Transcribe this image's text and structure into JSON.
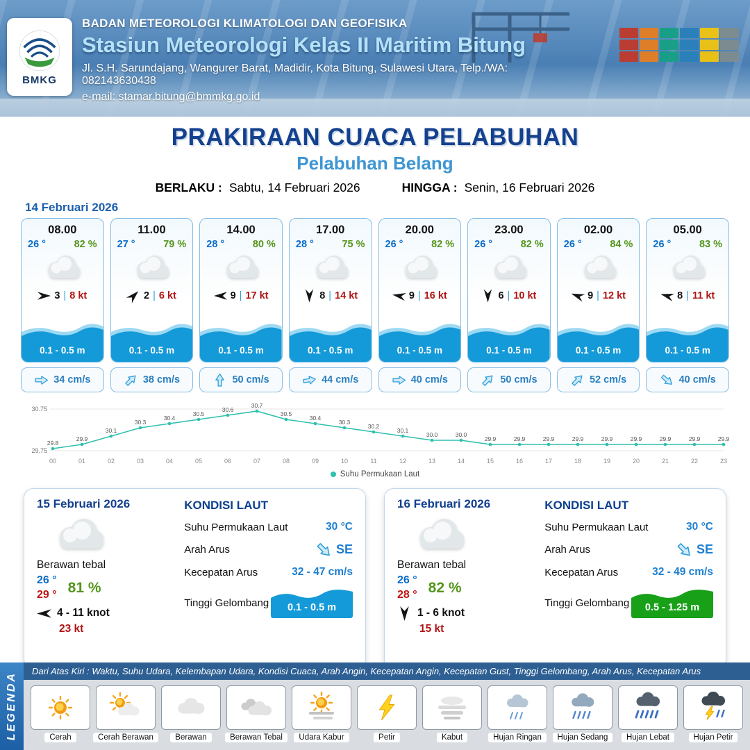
{
  "header": {
    "org": "BADAN METEOROLOGI KLIMATOLOGI DAN GEOFISIKA",
    "station": "Stasiun Meteorologi Kelas II Maritim Bitung",
    "address": "Jl. S.H. Sarundajang, Wangurer Barat, Madidir, Kota Bitung, Sulawesi Utara, Telp./WA: 082143630438",
    "email": "e-mail: stamar.bitung@bmmkg.go.id",
    "logo_text": "BMKG"
  },
  "title": {
    "main": "PRAKIRAAN CUACA PELABUHAN",
    "subtitle": "Pelabuhan Belang",
    "valid_label": "BERLAKU :",
    "valid_value": "Sabtu, 14 Februari 2026",
    "until_label": "HINGGA :",
    "until_value": "Senin, 16 Februari 2026"
  },
  "misc": {
    "divider": "|"
  },
  "forecast": {
    "date": "14 Februari 2026",
    "cards": [
      {
        "time": "08.00",
        "temp": "26 °",
        "rh": "82 %",
        "wind": "3",
        "gust": "8 kt",
        "wave": "0.1 - 0.5 m",
        "current": "34 cm/s",
        "wind_deg": 0,
        "cur_deg": 0
      },
      {
        "time": "11.00",
        "temp": "27 °",
        "rh": "79 %",
        "wind": "2",
        "gust": "6 kt",
        "wave": "0.1 - 0.5 m",
        "current": "38 cm/s",
        "wind_deg": -45,
        "cur_deg": -45
      },
      {
        "time": "14.00",
        "temp": "28 °",
        "rh": "80 %",
        "wind": "9",
        "gust": "17 kt",
        "wave": "0.1 - 0.5 m",
        "current": "50 cm/s",
        "wind_deg": 180,
        "cur_deg": -90
      },
      {
        "time": "17.00",
        "temp": "28 °",
        "rh": "75 %",
        "wind": "8",
        "gust": "14 kt",
        "wave": "0.1 - 0.5 m",
        "current": "44 cm/s",
        "wind_deg": 90,
        "cur_deg": -10
      },
      {
        "time": "20.00",
        "temp": "26 °",
        "rh": "82 %",
        "wind": "9",
        "gust": "16 kt",
        "wave": "0.1 - 0.5 m",
        "current": "40 cm/s",
        "wind_deg": 190,
        "cur_deg": 0
      },
      {
        "time": "23.00",
        "temp": "26 °",
        "rh": "82 %",
        "wind": "6",
        "gust": "10 kt",
        "wave": "0.1 - 0.5 m",
        "current": "50 cm/s",
        "wind_deg": 90,
        "cur_deg": -45
      },
      {
        "time": "02.00",
        "temp": "26 °",
        "rh": "84 %",
        "wind": "9",
        "gust": "12 kt",
        "wave": "0.1 - 0.5 m",
        "current": "52 cm/s",
        "wind_deg": 200,
        "cur_deg": -45
      },
      {
        "time": "05.00",
        "temp": "26 °",
        "rh": "83 %",
        "wind": "8",
        "gust": "11 kt",
        "wave": "0.1 - 0.5 m",
        "current": "40 cm/s",
        "wind_deg": 195,
        "cur_deg": 40
      }
    ],
    "wave_color": "#149ad8"
  },
  "chart_data": {
    "type": "line",
    "series_name": "Suhu Permukaan Laut",
    "x": [
      "00",
      "01",
      "02",
      "03",
      "04",
      "05",
      "06",
      "07",
      "08",
      "09",
      "10",
      "11",
      "12",
      "13",
      "14",
      "15",
      "16",
      "17",
      "18",
      "19",
      "20",
      "21",
      "22",
      "23"
    ],
    "values": [
      29.8,
      29.9,
      30.1,
      30.3,
      30.4,
      30.5,
      30.6,
      30.7,
      30.5,
      30.4,
      30.3,
      30.2,
      30.1,
      30.0,
      30.0,
      29.9,
      29.9,
      29.9,
      29.9,
      29.9,
      29.9,
      29.9,
      29.9,
      29.9
    ],
    "ylim": [
      29.75,
      30.75
    ],
    "yticks": [
      29.75,
      30.75
    ],
    "line_color": "#2fc0ae",
    "legend_position": "bottom",
    "grid": true
  },
  "days": [
    {
      "date": "15 Februari 2026",
      "condition": "Berawan tebal",
      "temp_min": "26 °",
      "temp_max": "29 °",
      "rh": "81 %",
      "wind": "4  - 11 knot",
      "gust": "23 kt",
      "wind_deg": 180,
      "sea": {
        "title": "KONDISI LAUT",
        "sst_label": "Suhu Permukaan Laut",
        "sst": "30 °C",
        "dir_label": "Arah Arus",
        "dir": "SE",
        "dir_deg": 45,
        "speed_label": "Kecepatan Arus",
        "speed": "32 - 47 cm/s",
        "wave_label": "Tinggi Gelombang",
        "wave": "0.1 - 0.5 m",
        "wave_color": "#149ad8"
      }
    },
    {
      "date": "16 Februari 2026",
      "condition": "Berawan tebal",
      "temp_min": "26 °",
      "temp_max": "28 °",
      "rh": "82 %",
      "wind": "1  - 6 knot",
      "gust": "15 kt",
      "wind_deg": 90,
      "sea": {
        "title": "KONDISI LAUT",
        "sst_label": "Suhu Permukaan Laut",
        "sst": "30 °C",
        "dir_label": "Arah Arus",
        "dir": "SE",
        "dir_deg": 45,
        "speed_label": "Kecepatan Arus",
        "speed": "32 - 49 cm/s",
        "wave_label": "Tinggi Gelombang",
        "wave": "0.5 - 1.25 m",
        "wave_color": "#18a019"
      }
    }
  ],
  "legend": {
    "title": "LEGENDA",
    "note": "Dari Atas Kiri : Waktu, Suhu Udara, Kelembapan Udara, Kondisi Cuaca, Arah Angin, Kecepatan Angin, Kecepatan Gust, Tinggi Gelombang, Arah Arus, Kecepatan Arus",
    "items": [
      {
        "label": "Cerah",
        "kind": "cerah"
      },
      {
        "label": "Cerah Berawan",
        "kind": "cerah-berawan"
      },
      {
        "label": "Berawan",
        "kind": "berawan"
      },
      {
        "label": "Berawan Tebal",
        "kind": "berawan-tebal"
      },
      {
        "label": "Udara Kabur",
        "kind": "udara-kabur"
      },
      {
        "label": "Petir",
        "kind": "petir"
      },
      {
        "label": "Kabut",
        "kind": "kabut"
      },
      {
        "label": "Hujan Ringan",
        "kind": "hujan-ringan"
      },
      {
        "label": "Hujan Sedang",
        "kind": "hujan-sedang"
      },
      {
        "label": "Hujan Lebat",
        "kind": "hujan-lebat"
      },
      {
        "label": "Hujan Petir",
        "kind": "hujan-petir"
      }
    ]
  }
}
